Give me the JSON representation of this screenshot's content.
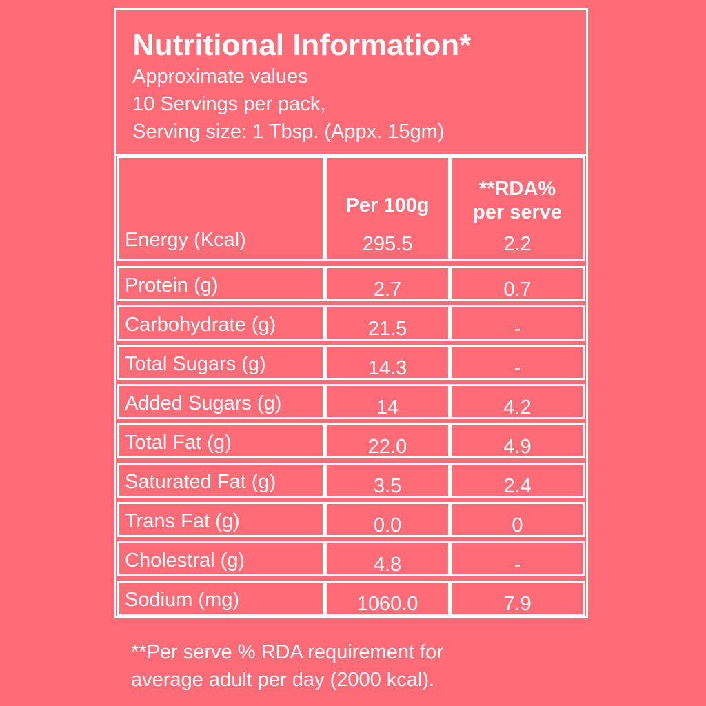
{
  "header": {
    "title": "Nutritional Information*",
    "line1": "Approximate values",
    "line2": "10 Servings per pack,",
    "line3": "Serving size: 1 Tbsp. (Appx. 15gm)"
  },
  "table": {
    "col_per": "Per 100g",
    "col_rda_line1": "**RDA%",
    "col_rda_line2": "per serve",
    "rows": [
      {
        "label": "Energy (Kcal)",
        "per100g": "295.5",
        "rda": "2.2"
      },
      {
        "label": "Protein (g)",
        "per100g": "2.7",
        "rda": "0.7"
      },
      {
        "label": "Carbohydrate (g)",
        "per100g": "21.5",
        "rda": "-"
      },
      {
        "label": "Total Sugars (g)",
        "per100g": "14.3",
        "rda": "-"
      },
      {
        "label": "Added Sugars (g)",
        "per100g": "14",
        "rda": "4.2"
      },
      {
        "label": "Total Fat (g)",
        "per100g": "22.0",
        "rda": "4.9"
      },
      {
        "label": "Saturated Fat (g)",
        "per100g": "3.5",
        "rda": "2.4"
      },
      {
        "label": "Trans Fat (g)",
        "per100g": "0.0",
        "rda": "0"
      },
      {
        "label": "Cholestral (g)",
        "per100g": "4.8",
        "rda": "-"
      },
      {
        "label": "Sodium (mg)",
        "per100g": "1060.0",
        "rda": "7.9"
      }
    ]
  },
  "footnote": {
    "line1": "**Per serve % RDA requirement for",
    "line2": "average adult per day (2000 kcal)."
  },
  "colors": {
    "background": "#ff6b77",
    "text": "#ffffff"
  }
}
